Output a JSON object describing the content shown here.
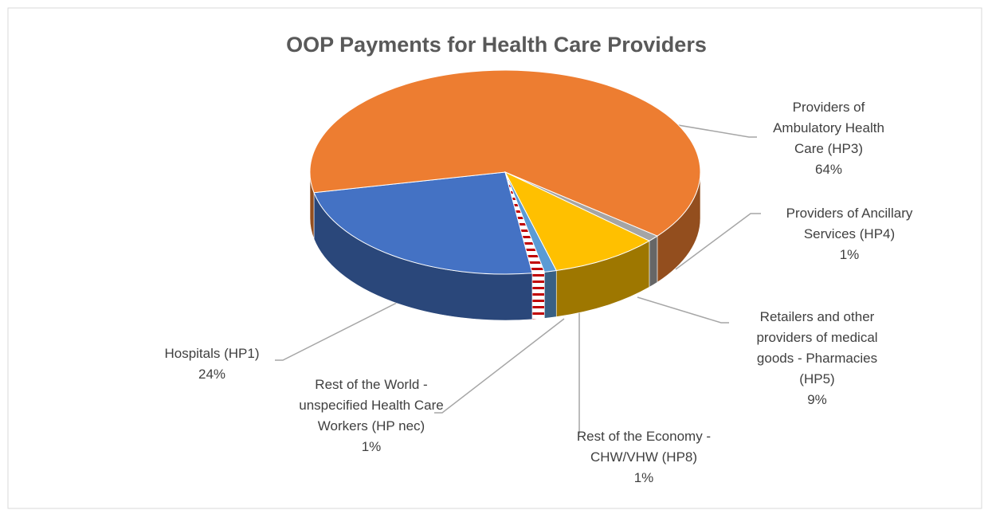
{
  "chart_data": {
    "type": "pie",
    "title": "OOP Payments for Health Care Providers",
    "categories": [
      "Hospitals (HP1)",
      "Providers of Ambulatory Health Care (HP3)",
      "Providers of Ancillary Services (HP4)",
      "Retailers and other providers of medical goods - Pharmacies (HP5)",
      "Rest of the Economy - CHW/VHW (HP8)",
      "Rest of the World - unspecified Health Care Workers (HP nec)"
    ],
    "values": [
      24,
      64,
      1,
      9,
      1,
      1
    ],
    "value_labels": [
      "24%",
      "64%",
      "1%",
      "9%",
      "1%",
      "1%"
    ],
    "colors": [
      "#4472c4",
      "#ed7d31",
      "#a5a5a5",
      "#ffc000",
      "#5b9bd5",
      "#c00000"
    ],
    "patterns": [
      null,
      null,
      null,
      null,
      null,
      "hatch"
    ]
  }
}
